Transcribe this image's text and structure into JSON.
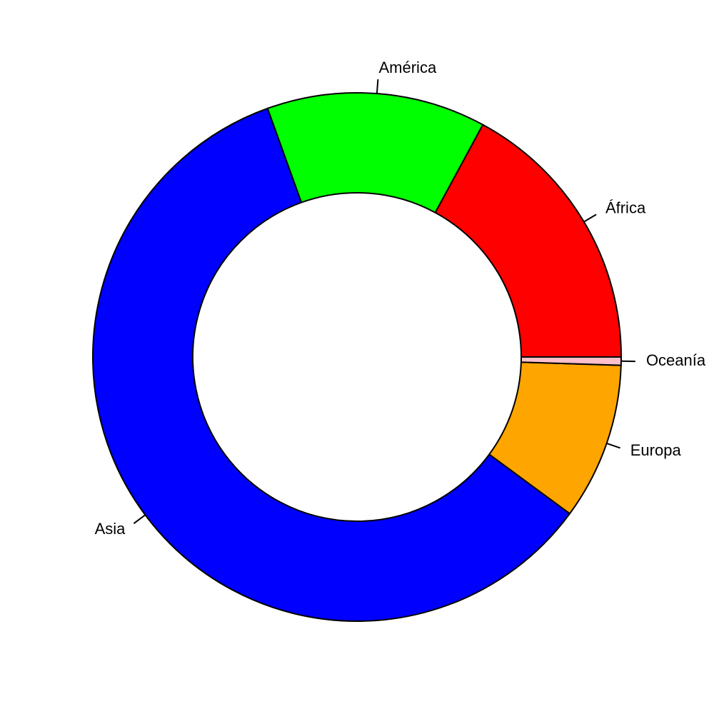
{
  "chart_data": {
    "type": "pie",
    "donut": true,
    "title": "",
    "categories": [
      "África",
      "América",
      "Asia",
      "Europa",
      "Oceanía"
    ],
    "values": [
      17.1,
      13.4,
      59.4,
      9.6,
      0.5
    ],
    "colors": [
      "#FF0000",
      "#00FF00",
      "#0000FF",
      "#FFA500",
      "#FFC0CB"
    ],
    "start_angle_deg": 0,
    "direction": "counterclockwise",
    "legend": "none"
  }
}
